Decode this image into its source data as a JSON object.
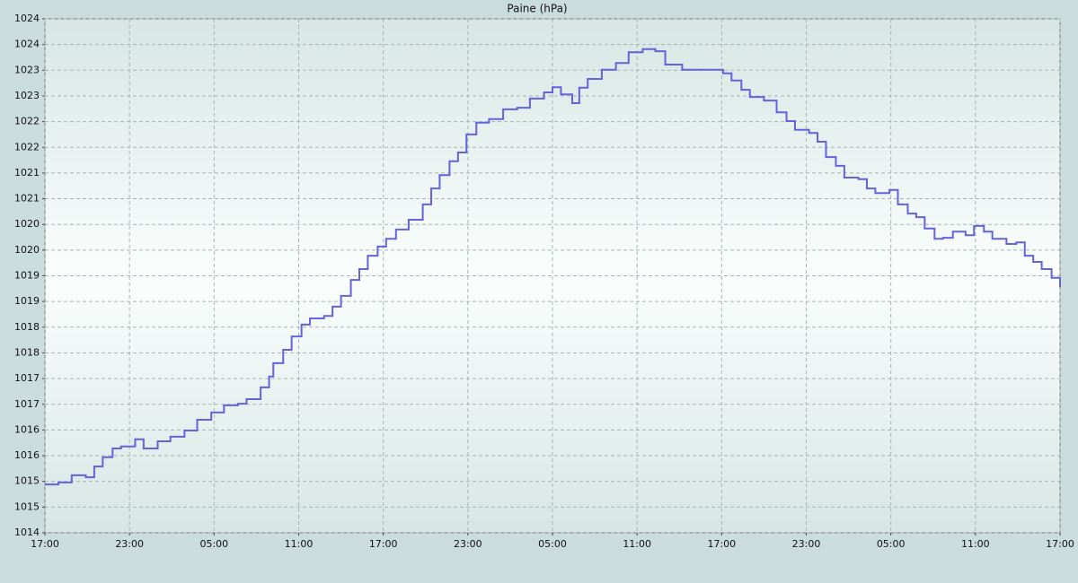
{
  "chart_data": {
    "type": "line",
    "title": "Paine (hPa)",
    "grid": true,
    "step": "post",
    "xlim": [
      0,
      72
    ],
    "xticks": [
      {
        "value": 0,
        "label": "17:00"
      },
      {
        "value": 6,
        "label": "23:00"
      },
      {
        "value": 12,
        "label": "05:00"
      },
      {
        "value": 18,
        "label": "11:00"
      },
      {
        "value": 24,
        "label": "17:00"
      },
      {
        "value": 30,
        "label": "23:00"
      },
      {
        "value": 36,
        "label": "05:00"
      },
      {
        "value": 42,
        "label": "11:00"
      },
      {
        "value": 48,
        "label": "17:00"
      },
      {
        "value": 54,
        "label": "23:00"
      },
      {
        "value": 60,
        "label": "05:00"
      },
      {
        "value": 66,
        "label": "11:00"
      },
      {
        "value": 72,
        "label": "17:00"
      }
    ],
    "ylim": [
      1014,
      1024
    ],
    "yticks": [
      1014,
      {
        "value": 1014.5,
        "label": "1015"
      },
      1015,
      {
        "value": 1015.5,
        "label": "1016"
      },
      1016,
      {
        "value": 1016.5,
        "label": "1017"
      },
      1017,
      {
        "value": 1017.5,
        "label": "1018"
      },
      1018,
      {
        "value": 1018.5,
        "label": "1019"
      },
      1019,
      {
        "value": 1019.5,
        "label": "1020"
      },
      1020,
      {
        "value": 1020.5,
        "label": "1021"
      },
      1021,
      {
        "value": 1021.5,
        "label": "1022"
      },
      1022,
      {
        "value": 1022.5,
        "label": "1023"
      },
      1023,
      {
        "value": 1023.5,
        "label": "1024"
      },
      1024
    ],
    "x": [
      0,
      0.96,
      1.9,
      2.9,
      3.5,
      4.1,
      4.8,
      5.4,
      6.4,
      7.0,
      8.0,
      8.9,
      9.9,
      10.8,
      11.8,
      12.7,
      13.7,
      14.3,
      15.3,
      15.9,
      16.2,
      16.9,
      17.5,
      18.2,
      18.8,
      19.8,
      20.4,
      21.0,
      21.7,
      22.3,
      22.9,
      23.6,
      24.2,
      24.9,
      25.8,
      26.8,
      27.4,
      28.0,
      28.7,
      29.3,
      29.9,
      30.6,
      31.5,
      32.5,
      33.5,
      34.4,
      35.4,
      36.0,
      36.6,
      37.4,
      37.9,
      38.5,
      39.5,
      40.5,
      41.4,
      42.4,
      43.3,
      44.0,
      44.6,
      45.2,
      46.2,
      47.2,
      48.1,
      48.7,
      49.4,
      50.0,
      51.0,
      51.9,
      52.6,
      53.2,
      54.2,
      54.8,
      55.4,
      56.1,
      56.7,
      57.7,
      58.3,
      58.9,
      59.9,
      60.5,
      61.2,
      61.8,
      62.4,
      63.1,
      63.7,
      64.4,
      65.3,
      65.9,
      66.6,
      67.2,
      68.2,
      68.9,
      69.5,
      70.1,
      70.7,
      71.4,
      72.0
    ],
    "series": [
      {
        "color": "#6363dc",
        "values": [
          1014.94,
          1014.98,
          1015.12,
          1015.08,
          1015.29,
          1015.47,
          1015.64,
          1015.68,
          1015.82,
          1015.64,
          1015.78,
          1015.87,
          1015.99,
          1016.2,
          1016.34,
          1016.48,
          1016.51,
          1016.6,
          1016.83,
          1017.04,
          1017.3,
          1017.56,
          1017.82,
          1018.05,
          1018.17,
          1018.22,
          1018.4,
          1018.61,
          1018.92,
          1019.13,
          1019.39,
          1019.57,
          1019.72,
          1019.9,
          1020.09,
          1020.39,
          1020.7,
          1020.96,
          1021.23,
          1021.4,
          1021.75,
          1021.98,
          1022.05,
          1022.24,
          1022.27,
          1022.45,
          1022.57,
          1022.67,
          1022.53,
          1022.36,
          1022.66,
          1022.83,
          1023.01,
          1023.14,
          1023.35,
          1023.41,
          1023.37,
          1023.11,
          1023.11,
          1023.01,
          1023.01,
          1023.01,
          1022.94,
          1022.8,
          1022.62,
          1022.48,
          1022.41,
          1022.18,
          1022.01,
          1021.84,
          1021.78,
          1021.61,
          1021.31,
          1021.14,
          1020.91,
          1020.88,
          1020.7,
          1020.61,
          1020.67,
          1020.39,
          1020.21,
          1020.14,
          1019.92,
          1019.72,
          1019.74,
          1019.86,
          1019.79,
          1019.97,
          1019.86,
          1019.72,
          1019.62,
          1019.65,
          1019.39,
          1019.27,
          1019.13,
          1018.96,
          1018.78
        ]
      }
    ]
  }
}
